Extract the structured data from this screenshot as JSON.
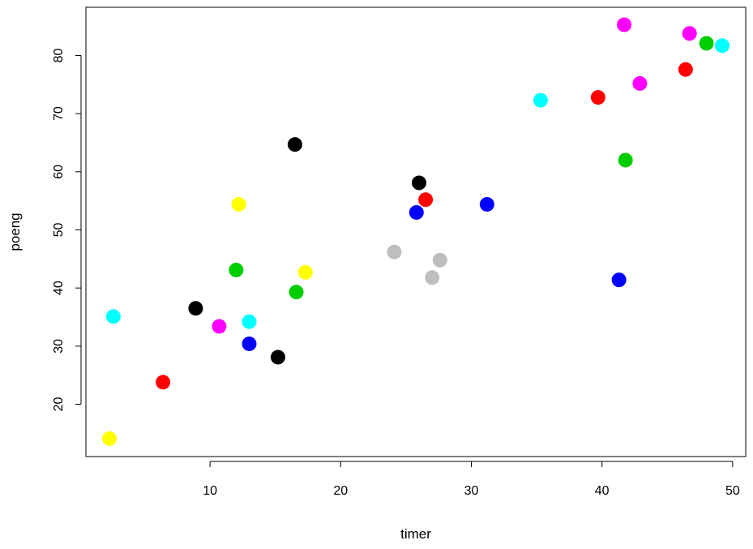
{
  "chart_data": {
    "type": "scatter",
    "xlabel": "timer",
    "ylabel": "poeng",
    "xlim": [
      0.5,
      51.0
    ],
    "ylim": [
      11.0,
      88.3
    ],
    "x_ticks": [
      10,
      20,
      30,
      40,
      50
    ],
    "y_ticks": [
      20,
      30,
      40,
      50,
      60,
      70,
      80
    ],
    "x_tick_labels": [
      "10",
      "20",
      "30",
      "40",
      "50"
    ],
    "y_tick_labels": [
      "20",
      "30",
      "40",
      "50",
      "60",
      "70",
      "80"
    ],
    "grid": false,
    "legend": "none",
    "points": [
      {
        "x": 2.3,
        "y": 14.1,
        "color": "#ffff00"
      },
      {
        "x": 2.6,
        "y": 35.1,
        "color": "#00ffff"
      },
      {
        "x": 6.4,
        "y": 23.8,
        "color": "#ff0000"
      },
      {
        "x": 8.9,
        "y": 36.5,
        "color": "#000000"
      },
      {
        "x": 10.7,
        "y": 33.4,
        "color": "#ff00ff"
      },
      {
        "x": 12.0,
        "y": 43.1,
        "color": "#00cd00"
      },
      {
        "x": 12.2,
        "y": 54.4,
        "color": "#ffff00"
      },
      {
        "x": 13.0,
        "y": 30.4,
        "color": "#0000ff"
      },
      {
        "x": 13.0,
        "y": 34.2,
        "color": "#00ffff"
      },
      {
        "x": 15.2,
        "y": 28.1,
        "color": "#000000"
      },
      {
        "x": 16.5,
        "y": 64.7,
        "color": "#000000"
      },
      {
        "x": 16.6,
        "y": 39.3,
        "color": "#00cd00"
      },
      {
        "x": 17.3,
        "y": 42.7,
        "color": "#ffff00"
      },
      {
        "x": 24.1,
        "y": 46.2,
        "color": "#bebebe"
      },
      {
        "x": 25.8,
        "y": 53.0,
        "color": "#0000ff"
      },
      {
        "x": 26.0,
        "y": 58.1,
        "color": "#000000"
      },
      {
        "x": 26.5,
        "y": 55.2,
        "color": "#ff0000"
      },
      {
        "x": 27.0,
        "y": 41.8,
        "color": "#bebebe"
      },
      {
        "x": 27.6,
        "y": 44.8,
        "color": "#bebebe"
      },
      {
        "x": 31.2,
        "y": 54.4,
        "color": "#0000ff"
      },
      {
        "x": 35.3,
        "y": 72.3,
        "color": "#00ffff"
      },
      {
        "x": 39.7,
        "y": 72.8,
        "color": "#ff0000"
      },
      {
        "x": 41.3,
        "y": 41.4,
        "color": "#0000ff"
      },
      {
        "x": 41.7,
        "y": 85.3,
        "color": "#ff00ff"
      },
      {
        "x": 41.8,
        "y": 62.0,
        "color": "#00cd00"
      },
      {
        "x": 42.9,
        "y": 75.2,
        "color": "#ff00ff"
      },
      {
        "x": 46.4,
        "y": 77.6,
        "color": "#ff0000"
      },
      {
        "x": 46.7,
        "y": 83.8,
        "color": "#ff00ff"
      },
      {
        "x": 48.0,
        "y": 82.1,
        "color": "#00cd00"
      },
      {
        "x": 49.2,
        "y": 81.7,
        "color": "#00ffff"
      }
    ]
  }
}
